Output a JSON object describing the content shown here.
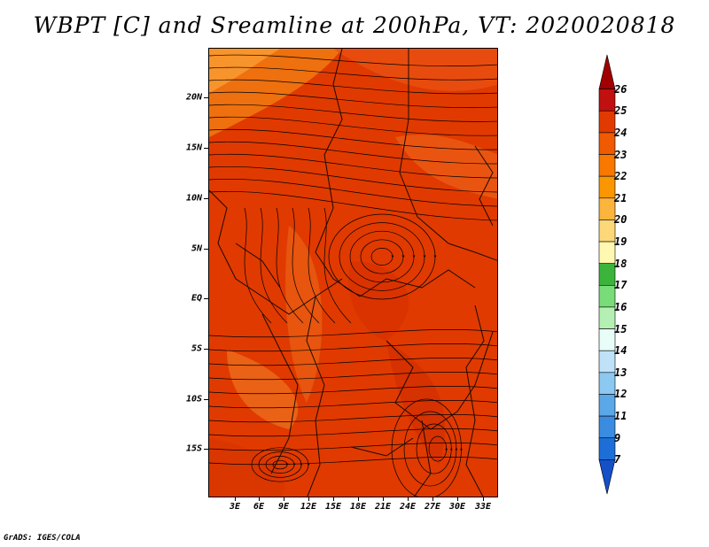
{
  "title": "WBPT [C] and Sreamline at 200hPa, VT: 2020020818",
  "credit": "GrADS: IGES/COLA",
  "map": {
    "lat_labels": [
      "20N",
      "15N",
      "10N",
      "5N",
      "EQ",
      "5S",
      "10S",
      "15S"
    ],
    "lon_labels": [
      "3E",
      "6E",
      "9E",
      "12E",
      "15E",
      "18E",
      "21E",
      "24E",
      "27E",
      "30E",
      "33E"
    ],
    "background_color": "#e03a00",
    "streamline_color": "#000000",
    "boundary_color": "#1a0a00"
  },
  "colorbar": {
    "levels": [
      "26",
      "25",
      "24",
      "23",
      "22",
      "21",
      "20",
      "19",
      "18",
      "17",
      "16",
      "15",
      "14",
      "13",
      "12",
      "11",
      "9",
      "7"
    ],
    "colors": [
      "#a00000",
      "#c01010",
      "#e03a00",
      "#f05a00",
      "#f87800",
      "#fa9600",
      "#fbb43c",
      "#fdd878",
      "#fef8b0",
      "#3cb43c",
      "#78dc78",
      "#b4f0b4",
      "#e8fcf8",
      "#bfe2f8",
      "#8cc8f0",
      "#5aa8e8",
      "#3a8ce0",
      "#1e6ed8",
      "#1450c8"
    ]
  }
}
